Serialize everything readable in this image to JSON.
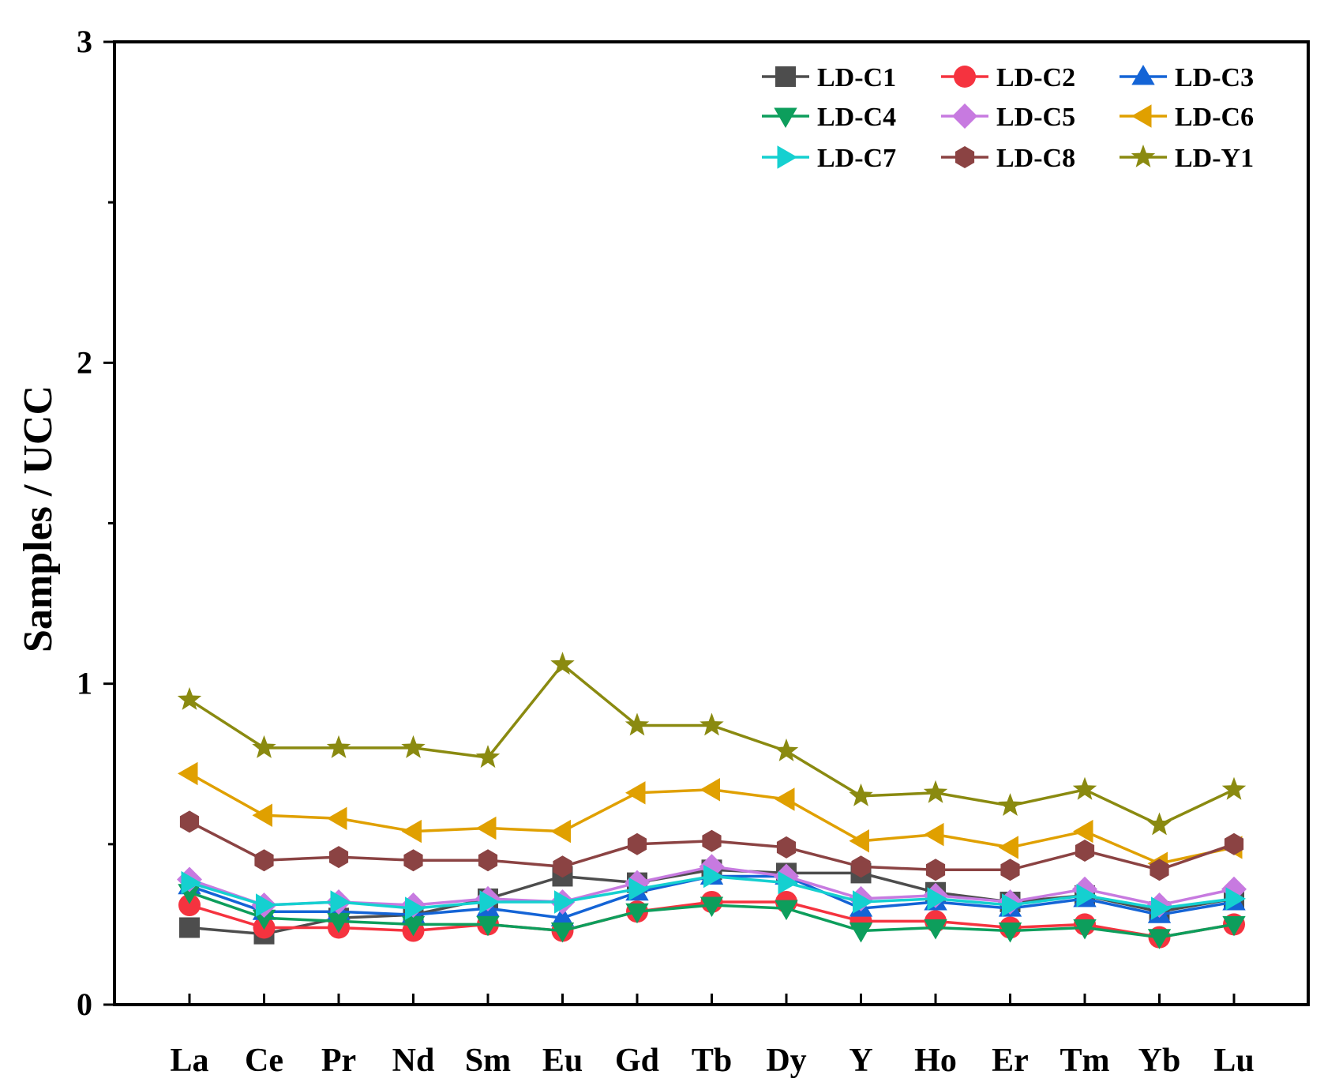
{
  "chart_data": {
    "type": "line",
    "title": "",
    "xlabel": "",
    "ylabel": "Samples / UCC",
    "ylim": [
      0,
      3
    ],
    "yticks": [
      0,
      1,
      2,
      3
    ],
    "categories": [
      "La",
      "Ce",
      "Pr",
      "Nd",
      "Sm",
      "Eu",
      "Gd",
      "Tb",
      "Dy",
      "Y",
      "Ho",
      "Er",
      "Tm",
      "Yb",
      "Lu"
    ],
    "legend_position": "top-right",
    "series": [
      {
        "name": "LD-C1",
        "color": "#4d4d4d",
        "marker": "square",
        "values": [
          0.24,
          0.22,
          0.27,
          0.28,
          0.33,
          0.4,
          0.38,
          0.42,
          0.41,
          0.41,
          0.35,
          0.32,
          0.34,
          0.29,
          0.33
        ]
      },
      {
        "name": "LD-C2",
        "color": "#f5333f",
        "marker": "circle",
        "values": [
          0.31,
          0.24,
          0.24,
          0.23,
          0.25,
          0.23,
          0.29,
          0.32,
          0.32,
          0.26,
          0.26,
          0.24,
          0.25,
          0.21,
          0.25
        ]
      },
      {
        "name": "LD-C3",
        "color": "#1464d6",
        "marker": "triangle-up",
        "values": [
          0.37,
          0.29,
          0.29,
          0.28,
          0.3,
          0.27,
          0.35,
          0.4,
          0.4,
          0.3,
          0.32,
          0.3,
          0.33,
          0.28,
          0.32
        ]
      },
      {
        "name": "LD-C4",
        "color": "#0d9e5c",
        "marker": "triangle-down",
        "values": [
          0.35,
          0.27,
          0.26,
          0.25,
          0.25,
          0.23,
          0.29,
          0.31,
          0.3,
          0.23,
          0.24,
          0.23,
          0.24,
          0.21,
          0.25
        ]
      },
      {
        "name": "LD-C5",
        "color": "#c77ae0",
        "marker": "diamond",
        "values": [
          0.39,
          0.31,
          0.32,
          0.31,
          0.33,
          0.32,
          0.38,
          0.43,
          0.4,
          0.33,
          0.34,
          0.32,
          0.36,
          0.31,
          0.36
        ]
      },
      {
        "name": "LD-C6",
        "color": "#e0a000",
        "marker": "triangle-left",
        "values": [
          0.72,
          0.59,
          0.58,
          0.54,
          0.55,
          0.54,
          0.66,
          0.67,
          0.64,
          0.51,
          0.53,
          0.49,
          0.54,
          0.44,
          0.49
        ]
      },
      {
        "name": "LD-C7",
        "color": "#15d0d0",
        "marker": "triangle-right",
        "values": [
          0.38,
          0.31,
          0.32,
          0.3,
          0.32,
          0.32,
          0.36,
          0.4,
          0.38,
          0.32,
          0.33,
          0.31,
          0.34,
          0.3,
          0.33
        ]
      },
      {
        "name": "LD-C8",
        "color": "#8b4343",
        "marker": "hexagon",
        "values": [
          0.57,
          0.45,
          0.46,
          0.45,
          0.45,
          0.43,
          0.5,
          0.51,
          0.49,
          0.43,
          0.42,
          0.42,
          0.48,
          0.42,
          0.5
        ]
      },
      {
        "name": "LD-Y1",
        "color": "#8a8a10",
        "marker": "star",
        "values": [
          0.95,
          0.8,
          0.8,
          0.8,
          0.77,
          1.06,
          0.87,
          0.87,
          0.79,
          0.65,
          0.66,
          0.62,
          0.67,
          0.56,
          0.67
        ]
      }
    ]
  }
}
